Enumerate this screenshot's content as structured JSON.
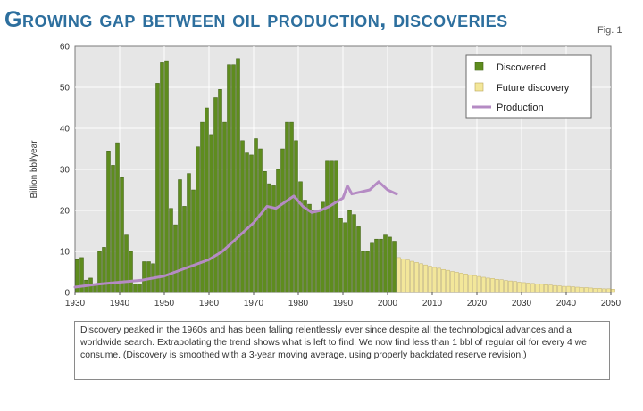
{
  "title": "Growing gap between oil production, discoveries",
  "figure_label": "Fig. 1",
  "caption": "Discovery peaked in the 1960s and has been falling relentlessly ever since despite all the technological advances and a worldwide search. Extrapolating the trend shows what is left to find. We now find less than 1 bbl of regular oil for every 4 we consume. (Discovery is smoothed with a 3-year moving average, using properly backdated reserve revision.)",
  "colors": {
    "discovered": "#5e8c1e",
    "future": "#f3e79a",
    "production": "#b58bc4",
    "plot_bg": "#e6e6e6",
    "title": "#2d6f9e"
  },
  "chart_data": {
    "type": "bar",
    "ylabel": "Billion bbl/year",
    "xlabel": "",
    "ylim": [
      0,
      60
    ],
    "xlim": [
      1930,
      2050
    ],
    "y_ticks": [
      0,
      10,
      20,
      30,
      40,
      50,
      60
    ],
    "x_ticks": [
      1930,
      1940,
      1950,
      1960,
      1970,
      1980,
      1990,
      2000,
      2010,
      2020,
      2030,
      2040,
      2050
    ],
    "grid": true,
    "legend": {
      "position": "top-right",
      "entries": [
        {
          "label": "Discovered",
          "kind": "bar-discovered"
        },
        {
          "label": "Future discovery",
          "kind": "bar-future"
        },
        {
          "label": "Production",
          "kind": "line-production"
        }
      ]
    },
    "series": [
      {
        "name": "Discovered",
        "start_year": 1930,
        "values": [
          8,
          8.5,
          3,
          3.5,
          2,
          10,
          11,
          34.5,
          31,
          36.5,
          28,
          14,
          10,
          2,
          2,
          7.5,
          7.5,
          7,
          51,
          56,
          56.5,
          20.5,
          16.5,
          27.5,
          21,
          29,
          25,
          35.5,
          41.5,
          45,
          38.5,
          47.5,
          49.5,
          41.5,
          55.5,
          55.5,
          57,
          37,
          34,
          33.5,
          37.5,
          35,
          29.5,
          26.5,
          26,
          30,
          35,
          41.5,
          41.5,
          37,
          27,
          22.5,
          21.5,
          20,
          20,
          22,
          32,
          32,
          32,
          18,
          17,
          20,
          19,
          16,
          10,
          10,
          12,
          13,
          13,
          14,
          13.5,
          12.5
        ]
      },
      {
        "name": "Future discovery",
        "start_year": 2002,
        "values": [
          8.5,
          8.2,
          7.9,
          7.6,
          7.3,
          7.0,
          6.7,
          6.4,
          6.1,
          5.9,
          5.6,
          5.4,
          5.1,
          4.9,
          4.7,
          4.5,
          4.3,
          4.1,
          3.9,
          3.7,
          3.5,
          3.4,
          3.2,
          3.1,
          2.9,
          2.8,
          2.7,
          2.5,
          2.4,
          2.3,
          2.2,
          2.1,
          2.0,
          1.9,
          1.8,
          1.7,
          1.6,
          1.5,
          1.5,
          1.4,
          1.3,
          1.2,
          1.2,
          1.1,
          1.0,
          1.0,
          0.9,
          0.9,
          0.8
        ]
      },
      {
        "name": "Production",
        "type": "line",
        "x": [
          1930,
          1935,
          1940,
          1945,
          1950,
          1955,
          1960,
          1963,
          1966,
          1970,
          1973,
          1975,
          1977,
          1979,
          1981,
          1983,
          1985,
          1987,
          1990,
          1991,
          1992,
          1994,
          1996,
          1998,
          2000,
          2002
        ],
        "y": [
          1.3,
          2,
          2.5,
          3,
          4,
          6,
          8,
          10,
          13,
          17,
          21,
          20.5,
          22,
          23.5,
          21,
          19.5,
          20,
          21,
          23,
          26,
          24,
          24.5,
          25,
          27,
          25,
          24
        ]
      }
    ]
  }
}
